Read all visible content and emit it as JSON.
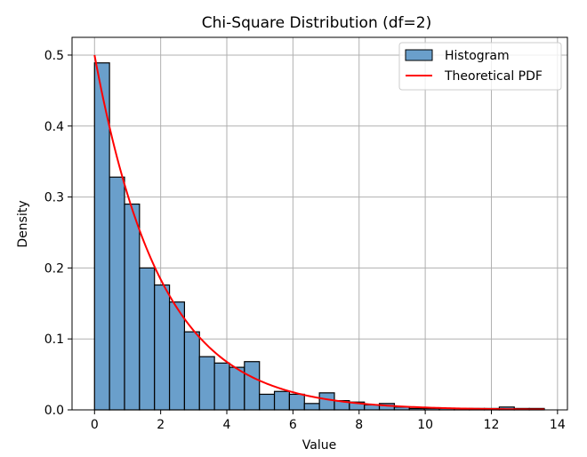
{
  "chart_data": {
    "type": "bar",
    "title": "Chi-Square Distribution (df=2)",
    "xlabel": "Value",
    "ylabel": "Density",
    "xlim": [
      -0.68,
      14.3
    ],
    "ylim": [
      0,
      0.525
    ],
    "xticks": [
      0,
      2,
      4,
      6,
      8,
      10,
      12,
      14
    ],
    "yticks": [
      0.0,
      0.1,
      0.2,
      0.3,
      0.4,
      0.5
    ],
    "grid": true,
    "legend_position": "top-right",
    "histogram": {
      "name": "Histogram",
      "color": "#6a9fcb",
      "edgecolor": "#000000",
      "bin_edges": [
        0.0,
        0.453,
        0.907,
        1.36,
        1.813,
        2.267,
        2.72,
        3.173,
        3.627,
        4.08,
        4.533,
        4.987,
        5.44,
        5.893,
        6.347,
        6.8,
        7.253,
        7.707,
        8.16,
        8.613,
        9.067,
        9.52,
        9.973,
        10.427,
        10.88,
        11.333,
        11.787,
        12.24,
        12.693,
        13.147,
        13.6
      ],
      "densities": [
        0.489,
        0.328,
        0.29,
        0.2,
        0.176,
        0.152,
        0.11,
        0.075,
        0.066,
        0.06,
        0.068,
        0.022,
        0.026,
        0.022,
        0.009,
        0.024,
        0.013,
        0.011,
        0.007,
        0.009,
        0.004,
        0.002,
        0.002,
        0.002,
        0.002,
        0.002,
        0.002,
        0.004,
        0.002,
        0.002
      ]
    },
    "pdf": {
      "name": "Theoretical PDF",
      "color": "#ff0000",
      "formula": "0.5*exp(-x/2)",
      "x_range": [
        0,
        13.6
      ]
    }
  }
}
